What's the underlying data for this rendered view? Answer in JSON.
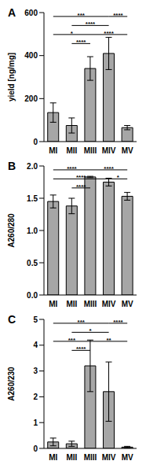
{
  "chart_data": [
    {
      "type": "bar",
      "title": "A",
      "y_label": "yield [ng/mg]",
      "categories": [
        "MI",
        "MII",
        "MIII",
        "MIV",
        "MV"
      ],
      "values": [
        135,
        75,
        340,
        410,
        65
      ],
      "errors": [
        45,
        35,
        55,
        75,
        10
      ],
      "color": "#a6a6a6",
      "ylim": [
        0,
        600
      ],
      "yticks": [
        0,
        200,
        400,
        600
      ],
      "annotations": [
        {
          "from": "MI",
          "to": "MIV",
          "label": "***"
        },
        {
          "from": "MIV",
          "to": "MV",
          "label": "****"
        },
        {
          "from": "MII",
          "to": "MIV",
          "label": "****"
        },
        {
          "from": "MIII",
          "to": "MV",
          "label": "****"
        },
        {
          "from": "MI",
          "to": "MIII",
          "label": "*"
        },
        {
          "from": "MII",
          "to": "MIII",
          "label": "****"
        }
      ]
    },
    {
      "type": "bar",
      "title": "B",
      "y_label": "A260/280",
      "categories": [
        "MI",
        "MII",
        "MIII",
        "MIV",
        "MV"
      ],
      "values": [
        1.45,
        1.38,
        1.83,
        1.75,
        1.53
      ],
      "errors": [
        0.1,
        0.12,
        0.01,
        0.06,
        0.06
      ],
      "color": "#a6a6a6",
      "ylim": [
        0,
        2
      ],
      "yticks": [
        {
          "value": 0,
          "label": "0.0"
        },
        {
          "value": 0.5,
          "label": "0.5"
        },
        {
          "value": 1,
          "label": "1.0"
        },
        {
          "value": 1.5,
          "label": "1.5"
        },
        {
          "value": 2,
          "label": "2.0"
        }
      ],
      "annotations": [
        {
          "from": "MI",
          "to": "MIII",
          "label": "****"
        },
        {
          "from": "MI",
          "to": "MIV",
          "label": "****"
        },
        {
          "from": "MII",
          "to": "MIII",
          "label": "****"
        },
        {
          "from": "MIII",
          "to": "MV",
          "label": "****"
        },
        {
          "from": "MIV",
          "to": "MV",
          "label": "*"
        }
      ]
    },
    {
      "type": "bar",
      "title": "C",
      "y_label": "A260/230",
      "categories": [
        "MI",
        "MII",
        "MIII",
        "MIV",
        "MV"
      ],
      "values": [
        0.25,
        0.18,
        3.2,
        2.2,
        0.05
      ],
      "errors": [
        0.15,
        0.1,
        1.0,
        1.15,
        0.03
      ],
      "color": "#a6a6a6",
      "ylim": [
        0,
        5
      ],
      "yticks": [
        0,
        1,
        2,
        3,
        4,
        5
      ],
      "annotations": [
        {
          "from": "MI",
          "to": "MIV",
          "label": "***"
        },
        {
          "from": "MII",
          "to": "MIV",
          "label": "*"
        },
        {
          "from": "MI",
          "to": "MIII",
          "label": "***"
        },
        {
          "from": "MIII",
          "to": "MV",
          "label": "**"
        },
        {
          "from": "MII",
          "to": "MIII",
          "label": "****"
        },
        {
          "from": "MIV",
          "to": "MV",
          "label": "****"
        }
      ]
    }
  ]
}
